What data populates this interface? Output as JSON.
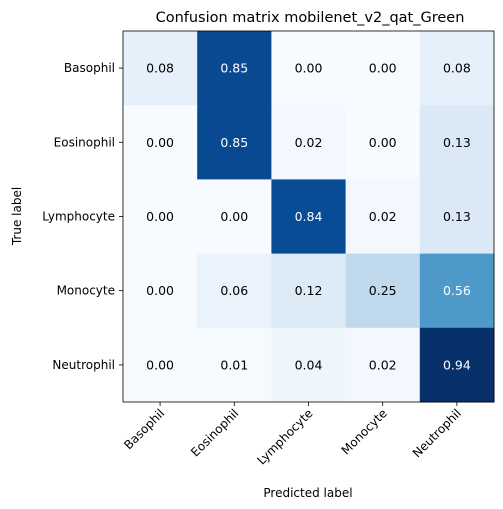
{
  "chart_data": {
    "type": "heatmap",
    "title": "Confusion matrix mobilenet_v2_qat_Green",
    "xlabel": "Predicted label",
    "ylabel": "True label",
    "x_categories": [
      "Basophil",
      "Eosinophil",
      "Lymphocyte",
      "Monocyte",
      "Neutrophil"
    ],
    "y_categories": [
      "Basophil",
      "Eosinophil",
      "Lymphocyte",
      "Monocyte",
      "Neutrophil"
    ],
    "values": [
      [
        0.08,
        0.85,
        0.0,
        0.0,
        0.08
      ],
      [
        0.0,
        0.85,
        0.02,
        0.0,
        0.13
      ],
      [
        0.0,
        0.0,
        0.84,
        0.02,
        0.13
      ],
      [
        0.0,
        0.06,
        0.12,
        0.25,
        0.56
      ],
      [
        0.0,
        0.01,
        0.04,
        0.02,
        0.94
      ]
    ],
    "colormap": "Blues",
    "grid": false
  }
}
